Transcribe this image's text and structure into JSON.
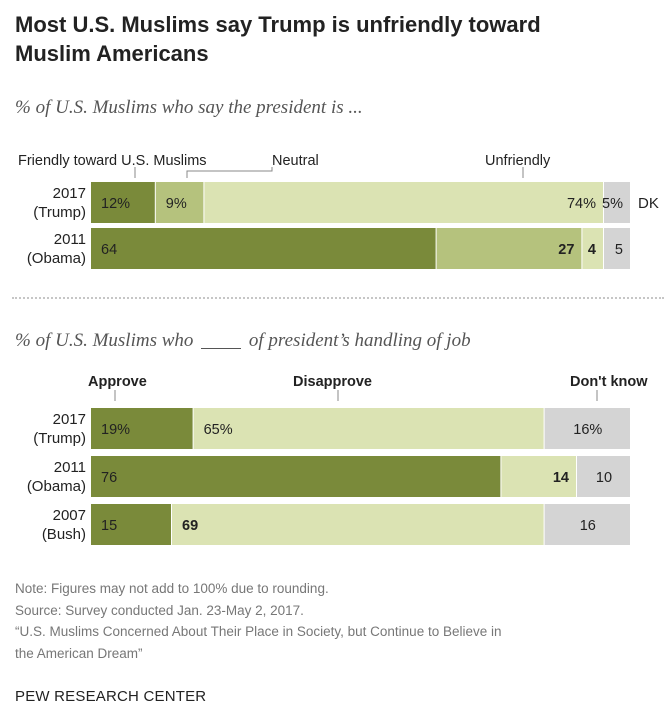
{
  "title": "Most U.S. Muslims say Trump is unfriendly toward Muslim Americans",
  "colors": {
    "dark": "#7a8a3a",
    "medium": "#b5c27d",
    "light": "#dbe3b3",
    "gray": "#d4d4d4",
    "text": "#222222",
    "muted": "#777777"
  },
  "chart_data": [
    {
      "type": "bar",
      "orientation": "horizontal",
      "stacked": true,
      "subtitle": "% of U.S. Muslims who say the president is ...",
      "categories": [
        "2017 (Trump)",
        "2011 (Obama)"
      ],
      "category_lines": [
        [
          "2017",
          "(Trump)"
        ],
        [
          "2011",
          "(Obama)"
        ]
      ],
      "series": [
        {
          "name": "Friendly toward U.S. Muslims",
          "values": [
            12,
            64
          ],
          "labels": [
            "12%",
            "64"
          ],
          "color": "dark",
          "label_align": "start"
        },
        {
          "name": "Neutral",
          "values": [
            9,
            27
          ],
          "labels": [
            "9%",
            "27"
          ],
          "color": "medium",
          "label_align": "mixed"
        },
        {
          "name": "Unfriendly",
          "values": [
            74,
            4
          ],
          "labels": [
            "74%",
            "4"
          ],
          "color": "light",
          "label_align": "end"
        },
        {
          "name": "DK",
          "values": [
            5,
            5
          ],
          "labels": [
            "5%",
            "5"
          ],
          "color": "gray",
          "label_align": "end"
        }
      ],
      "trailing_label": "DK",
      "xlim": [
        0,
        100
      ]
    },
    {
      "type": "bar",
      "orientation": "horizontal",
      "stacked": true,
      "subtitle_before": "% of U.S. Muslims who",
      "subtitle_after": "of president’s handling of job",
      "categories": [
        "2017 (Trump)",
        "2011 (Obama)",
        "2007 (Bush)"
      ],
      "category_lines": [
        [
          "2017",
          "(Trump)"
        ],
        [
          "2011",
          "(Obama)"
        ],
        [
          "2007",
          "(Bush)"
        ]
      ],
      "series": [
        {
          "name": "Approve",
          "values": [
            19,
            76,
            15
          ],
          "labels": [
            "19%",
            "76",
            "15"
          ],
          "color": "dark",
          "label_align": "start"
        },
        {
          "name": "Disapprove",
          "values": [
            65,
            14,
            69
          ],
          "labels": [
            "65%",
            "14",
            "69"
          ],
          "color": "light",
          "label_align": "mixed"
        },
        {
          "name": "Don't know",
          "values": [
            16,
            10,
            16
          ],
          "labels": [
            "16%",
            "10",
            "16"
          ],
          "color": "gray",
          "label_align": "center"
        }
      ],
      "xlim": [
        0,
        100
      ]
    }
  ],
  "notes": [
    "Note: Figures may not add to 100% due to rounding.",
    "Source: Survey conducted Jan. 23-May 2, 2017.",
    "“U.S. Muslims Concerned About Their Place in Society, but Continue to Believe in",
    "the American Dream”"
  ],
  "source_org": "PEW RESEARCH CENTER"
}
